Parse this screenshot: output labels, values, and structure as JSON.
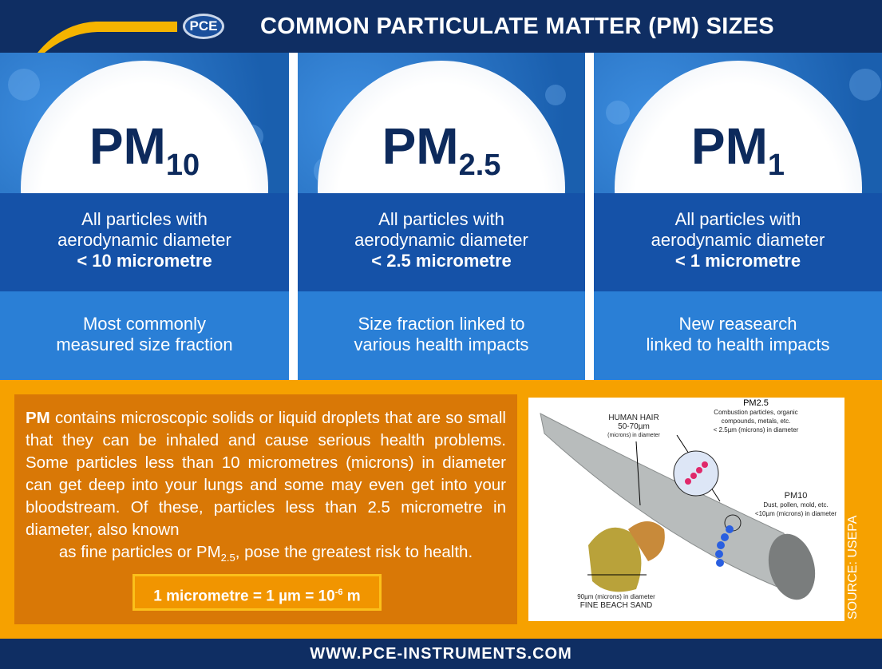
{
  "header": {
    "title": "COMMON PARTICULATE MATTER (PM) SIZES",
    "logo": "PCE"
  },
  "columns": [
    {
      "pm": "PM",
      "sub": "10",
      "line1": "All particles with",
      "line2": "aerodynamic diameter",
      "line3": "< 10 micrometre",
      "note1": "Most commonly",
      "note2": "measured size fraction"
    },
    {
      "pm": "PM",
      "sub": "2.5",
      "line1": "All particles with",
      "line2": "aerodynamic diameter",
      "line3": "< 2.5 micrometre",
      "note1": "Size fraction linked to",
      "note2": "various health impacts"
    },
    {
      "pm": "PM",
      "sub": "1",
      "line1": "All particles with",
      "line2": "aerodynamic diameter",
      "line3": "< 1 micrometre",
      "note1": "New reasearch",
      "note2": "linked to health impacts"
    }
  ],
  "info": {
    "bold": "PM",
    "body": " contains microscopic solids or liquid droplets that are so small that they can be inhaled and cause serious health problems. Some particles less than 10 micrometres (microns) in diameter can get deep into your lungs and some may even get into your bloodstream. Of these, particles less than 2.5 micrometre in diameter, also known",
    "last_pre": "as fine particles or PM",
    "last_sub": "2.5",
    "last_post": ", pose the greatest risk to health.",
    "formula_pre": "1 micrometre = 1 µm = 10",
    "formula_sup": "-6",
    "formula_post": " m"
  },
  "illustration": {
    "hair_title": "HUMAN HAIR",
    "hair_size": "50-70µm",
    "hair_note": "(microns) in diameter",
    "pm25_title": "PM2.5",
    "pm25_desc1": "Combustion particles, organic",
    "pm25_desc2": "compounds, metals, etc.",
    "pm25_size": "< 2.5µm (microns) in diameter",
    "pm10_title": "PM10",
    "pm10_desc": "Dust, pollen, mold, etc.",
    "pm10_size": "<10µm (microns) in diameter",
    "sand_size": "90µm (microns) in diameter",
    "sand_title": "FINE BEACH SAND",
    "source": "SOURCE: USEPA"
  },
  "footer": {
    "url": "WWW.PCE-INSTRUMENTS.COM"
  },
  "colors": {
    "navy": "#0f2e63",
    "band_dark": "#1552a8",
    "band_light": "#2a7fd6",
    "orange": "#d97806",
    "orange_border": "#f6a100"
  }
}
